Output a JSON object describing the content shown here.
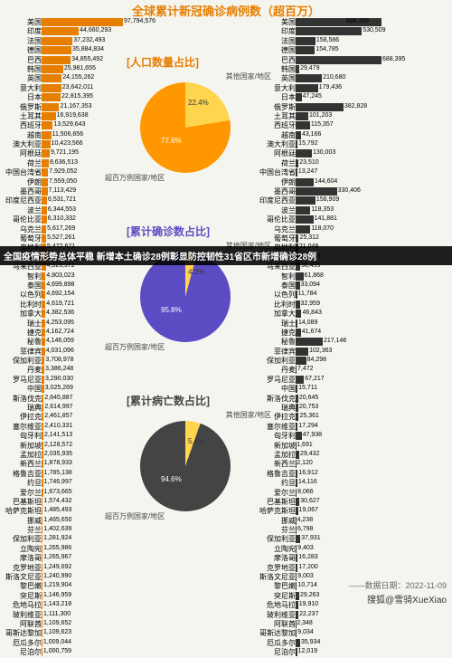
{
  "title": {
    "text": "全球累计新冠确诊病例数（超百万）",
    "color": "#e67e00",
    "fontsize": 13
  },
  "leftBarColor": "#e67e00",
  "rightBarColor": "#333333",
  "leftMax": 97794576,
  "rightMax": 688395,
  "leftChart": {
    "countries": [
      {
        "n": "美国",
        "v": 97794576
      },
      {
        "n": "印度",
        "v": 44660293
      },
      {
        "n": "法国",
        "v": 37232493
      },
      {
        "n": "德国",
        "v": 35884834
      },
      {
        "n": "巴西",
        "v": 34855492
      },
      {
        "n": "韩国",
        "v": 25981655
      },
      {
        "n": "英国",
        "v": 24155262
      },
      {
        "n": "意大利",
        "v": 23642011
      },
      {
        "n": "日本",
        "v": 22815395
      },
      {
        "n": "俄罗斯",
        "v": 21167353
      },
      {
        "n": "土耳其",
        "v": 16919638
      },
      {
        "n": "西班牙",
        "v": 13529643
      },
      {
        "n": "越南",
        "v": 11506656
      },
      {
        "n": "澳大利亚",
        "v": 10423566
      },
      {
        "n": "阿根廷",
        "v": 9721195
      },
      {
        "n": "荷兰",
        "v": 8636513
      },
      {
        "n": "中国台湾省",
        "v": 7929052
      },
      {
        "n": "伊朗",
        "v": 7559050
      },
      {
        "n": "墨西哥",
        "v": 7113429
      },
      {
        "n": "印度尼西亚",
        "v": 6531721
      },
      {
        "n": "波兰",
        "v": 6344553
      },
      {
        "n": "哥伦比亚",
        "v": 6310332
      },
      {
        "n": "乌克兰",
        "v": 5617269
      },
      {
        "n": "葡萄牙",
        "v": 5527261
      },
      {
        "n": "奥地利",
        "v": 5472671
      },
      {
        "n": "希腊",
        "v": 5082384
      },
      {
        "n": "马来西亚",
        "v": 4929972
      },
      {
        "n": "智利",
        "v": 4803023
      },
      {
        "n": "泰国",
        "v": 4699898
      },
      {
        "n": "以色列",
        "v": 4692154
      },
      {
        "n": "比利时",
        "v": 4619721
      },
      {
        "n": "加拿大",
        "v": 4382536
      },
      {
        "n": "瑞士",
        "v": 4253095
      },
      {
        "n": "捷克",
        "v": 4162724
      },
      {
        "n": "秘鲁",
        "v": 4146059
      },
      {
        "n": "菲律宾",
        "v": 4031096
      },
      {
        "n": "保加利亚",
        "v": 3708978
      },
      {
        "n": "丹麦",
        "v": 3386248
      },
      {
        "n": "罗马尼亚",
        "v": 3290030
      },
      {
        "n": "中国",
        "v": 3025269
      },
      {
        "n": "斯洛伐克",
        "v": 2645887
      },
      {
        "n": "瑞典",
        "v": 2614997
      },
      {
        "n": "伊拉克",
        "v": 2461857
      },
      {
        "n": "塞尔维亚",
        "v": 2410331
      },
      {
        "n": "匈牙利",
        "v": 2141513
      },
      {
        "n": "新加坡",
        "v": 2128572
      },
      {
        "n": "孟加拉",
        "v": 2035935
      },
      {
        "n": "新西兰",
        "v": 1878933
      },
      {
        "n": "格鲁吉亚",
        "v": 1785138
      },
      {
        "n": "约旦",
        "v": 1746997
      },
      {
        "n": "爱尔兰",
        "v": 1673665
      },
      {
        "n": "巴基斯坦",
        "v": 1574432
      },
      {
        "n": "哈萨克斯坦",
        "v": 1485493
      },
      {
        "n": "挪威",
        "v": 1465650
      },
      {
        "n": "芬兰",
        "v": 1402639
      },
      {
        "n": "保加利亚",
        "v": 1281924
      },
      {
        "n": "立陶宛",
        "v": 1265986
      },
      {
        "n": "摩洛哥",
        "v": 1265967
      },
      {
        "n": "克罗地亚",
        "v": 1249692
      },
      {
        "n": "斯洛文尼亚",
        "v": 1240990
      },
      {
        "n": "黎巴嫩",
        "v": 1219904
      },
      {
        "n": "突尼斯",
        "v": 1146959
      },
      {
        "n": "危地马拉",
        "v": 1143218
      },
      {
        "n": "玻利维亚",
        "v": 1111300
      },
      {
        "n": "阿联酋",
        "v": 1109652
      },
      {
        "n": "哥斯达黎加",
        "v": 1109623
      },
      {
        "n": "厄瓜多尔",
        "v": 1009044
      },
      {
        "n": "尼泊尔",
        "v": 1000759
      }
    ]
  },
  "rightChart": {
    "countries": [
      {
        "n": "美国",
        "v": 688395,
        "off": -40
      },
      {
        "n": "印度",
        "v": 530509
      },
      {
        "n": "法国",
        "v": 158586
      },
      {
        "n": "德国",
        "v": 154785
      },
      {
        "n": "巴西",
        "v": 688395
      },
      {
        "n": "韩国",
        "v": 29479
      },
      {
        "n": "英国",
        "v": 210680
      },
      {
        "n": "意大利",
        "v": 179436
      },
      {
        "n": "日本",
        "v": 47245
      },
      {
        "n": "俄罗斯",
        "v": 382828
      },
      {
        "n": "土耳其",
        "v": 101203
      },
      {
        "n": "西班牙",
        "v": 115357
      },
      {
        "n": "越南",
        "v": 43166
      },
      {
        "n": "澳大利亚",
        "v": 15792
      },
      {
        "n": "阿根廷",
        "v": 130003
      },
      {
        "n": "荷兰",
        "v": 23510
      },
      {
        "n": "中国台湾省",
        "v": 13247
      },
      {
        "n": "伊朗",
        "v": 144604
      },
      {
        "n": "墨西哥",
        "v": 330406
      },
      {
        "n": "印度尼西亚",
        "v": 158909
      },
      {
        "n": "波兰",
        "v": 118353
      },
      {
        "n": "哥伦比亚",
        "v": 141881
      },
      {
        "n": "乌克兰",
        "v": 118070
      },
      {
        "n": "葡萄牙",
        "v": 25312
      },
      {
        "n": "奥地利",
        "v": 21049
      },
      {
        "n": "希腊",
        "v": 33888
      },
      {
        "n": "马来西亚",
        "v": 36495
      },
      {
        "n": "智利",
        "v": 61868
      },
      {
        "n": "泰国",
        "v": 33094
      },
      {
        "n": "以色列",
        "v": 11784
      },
      {
        "n": "比利时",
        "v": 32959
      },
      {
        "n": "加拿大",
        "v": 46843
      },
      {
        "n": "瑞士",
        "v": 14089
      },
      {
        "n": "捷克",
        "v": 41674
      },
      {
        "n": "秘鲁",
        "v": 217146
      },
      {
        "n": "菲律宾",
        "v": 102363
      },
      {
        "n": "保加利亚",
        "v": 84298
      },
      {
        "n": "丹麦",
        "v": 7472
      },
      {
        "n": "罗马尼亚",
        "v": 67217
      },
      {
        "n": "中国",
        "v": 15711
      },
      {
        "n": "斯洛伐克",
        "v": 20645
      },
      {
        "n": "瑞典",
        "v": 20753
      },
      {
        "n": "伊拉克",
        "v": 25361
      },
      {
        "n": "塞尔维亚",
        "v": 17294
      },
      {
        "n": "匈牙利",
        "v": 47938
      },
      {
        "n": "新加坡",
        "v": 1691
      },
      {
        "n": "孟加拉",
        "v": 29432
      },
      {
        "n": "新西兰",
        "v": 2120
      },
      {
        "n": "格鲁吉亚",
        "v": 16912
      },
      {
        "n": "约旦",
        "v": 14116
      },
      {
        "n": "爱尔兰",
        "v": 8066
      },
      {
        "n": "巴基斯坦",
        "v": 30627
      },
      {
        "n": "哈萨克斯坦",
        "v": 19067
      },
      {
        "n": "挪威",
        "v": 4238
      },
      {
        "n": "芬兰",
        "v": 6798
      },
      {
        "n": "保加利亚",
        "v": 37931
      },
      {
        "n": "立陶宛",
        "v": 9403
      },
      {
        "n": "摩洛哥",
        "v": 16283
      },
      {
        "n": "克罗地亚",
        "v": 17200
      },
      {
        "n": "斯洛文尼亚",
        "v": 9003
      },
      {
        "n": "黎巴嫩",
        "v": 10714
      },
      {
        "n": "突尼斯",
        "v": 29263
      },
      {
        "n": "危地马拉",
        "v": 19910
      },
      {
        "n": "玻利维亚",
        "v": 22237
      },
      {
        "n": "阿联酋",
        "v": 2348
      },
      {
        "n": "哥斯达黎加",
        "v": 9034
      },
      {
        "n": "厄瓜多尔",
        "v": 35934
      },
      {
        "n": "尼泊尔",
        "v": 12019
      }
    ]
  },
  "pies": [
    {
      "title": "人口数量占比",
      "titleColor": "#e67e00",
      "slices": [
        {
          "l": "其他国家/地区",
          "p": 22.4,
          "c": "#ffd54f"
        },
        {
          "l": "超百万例国家/地区",
          "p": 77.6,
          "c": "#ff9800"
        }
      ]
    },
    {
      "title": "累计确诊数占比",
      "titleColor": "#5b4cc4",
      "slices": [
        {
          "l": "其他国家/地区",
          "p": 4.2,
          "c": "#ffd54f"
        },
        {
          "l": "超百万例国家/地区",
          "p": 95.8,
          "c": "#5b4cc4"
        }
      ]
    },
    {
      "title": "累计病亡数占比",
      "titleColor": "#444444",
      "slices": [
        {
          "l": "其他国家/地区",
          "p": 5.4,
          "c": "#ffd54f"
        },
        {
          "l": "超百万例国家/地区",
          "p": 94.6,
          "c": "#444444"
        }
      ]
    }
  ],
  "banner": "全国疫情形势总体平稳 新增本土确诊28例彰显防控韧性31省区市新增确诊28例",
  "date": "2022-11-09",
  "signature": "搜狐@雪骑XueXiao"
}
